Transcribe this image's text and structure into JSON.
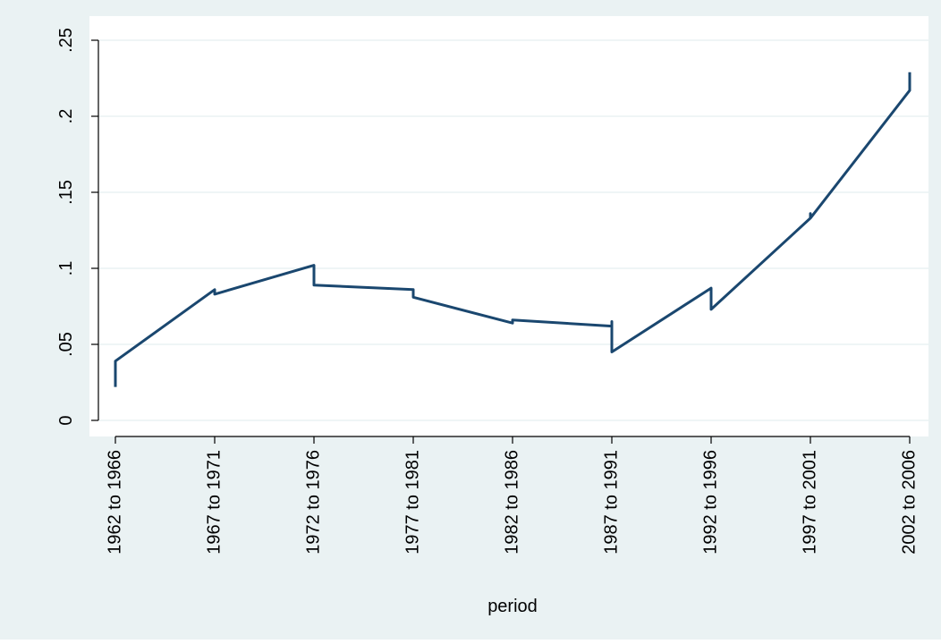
{
  "chart_data": {
    "type": "line",
    "title": "",
    "xlabel": "period",
    "ylabel": "",
    "categories": [
      "1962 to 1966",
      "1967 to 1971",
      "1972 to 1976",
      "1977 to 1981",
      "1982 to 1986",
      "1987 to 1991",
      "1992 to 1996",
      "1997 to 2001",
      "2002 to 2006"
    ],
    "y_ticks": [
      {
        "value": 0,
        "label": "0"
      },
      {
        "value": 0.05,
        "label": ".05"
      },
      {
        "value": 0.1,
        "label": ".1"
      },
      {
        "value": 0.15,
        "label": ".15"
      },
      {
        "value": 0.2,
        "label": ".2"
      },
      {
        "value": 0.25,
        "label": ".25"
      }
    ],
    "ylim": [
      0,
      0.25
    ],
    "grid": true,
    "legend": "none",
    "series": [
      {
        "points": [
          {
            "x": 0,
            "y": 0.022
          },
          {
            "x": 0,
            "y": 0.039
          },
          {
            "x": 1,
            "y": 0.086
          },
          {
            "x": 1,
            "y": 0.083
          },
          {
            "x": 2,
            "y": 0.102
          },
          {
            "x": 2,
            "y": 0.089
          },
          {
            "x": 3,
            "y": 0.086
          },
          {
            "x": 3,
            "y": 0.081
          },
          {
            "x": 4,
            "y": 0.064
          },
          {
            "x": 4,
            "y": 0.066
          },
          {
            "x": 5,
            "y": 0.062
          },
          {
            "x": 5,
            "y": 0.065
          },
          {
            "x": 5,
            "y": 0.045
          },
          {
            "x": 6,
            "y": 0.087
          },
          {
            "x": 6,
            "y": 0.073
          },
          {
            "x": 7,
            "y": 0.133
          },
          {
            "x": 7,
            "y": 0.136
          },
          {
            "x": 7,
            "y": 0.133
          },
          {
            "x": 8,
            "y": 0.217
          },
          {
            "x": 8,
            "y": 0.229
          }
        ]
      }
    ],
    "colors": {
      "outer_background": "#eaf2f3",
      "plot_background": "#ffffff",
      "grid": "#eaf2f3",
      "line": "#1a476f",
      "axis": "#000000"
    }
  }
}
